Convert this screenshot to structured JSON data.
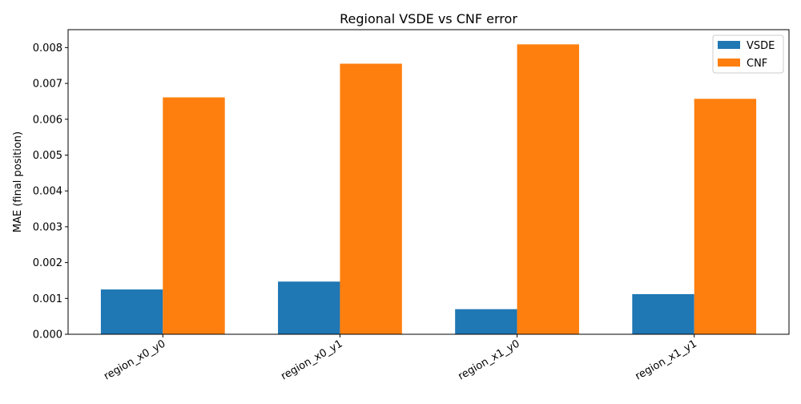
{
  "chart_data": {
    "type": "bar",
    "title": "Regional VSDE vs CNF error",
    "xlabel": "",
    "ylabel": "MAE (final position)",
    "categories": [
      "region_x0_y0",
      "region_x0_y1",
      "region_x1_y0",
      "region_x1_y1"
    ],
    "series": [
      {
        "name": "VSDE",
        "color": "#1f77b4",
        "values": [
          0.00125,
          0.00147,
          0.0007,
          0.00112
        ]
      },
      {
        "name": "CNF",
        "color": "#ff7f0e",
        "values": [
          0.00661,
          0.00755,
          0.00809,
          0.00657
        ]
      }
    ],
    "ylim": [
      0,
      0.0085
    ],
    "yticks": [
      "0.000",
      "0.001",
      "0.002",
      "0.003",
      "0.004",
      "0.005",
      "0.006",
      "0.007",
      "0.008"
    ],
    "grid": false,
    "legend": "top-right"
  }
}
